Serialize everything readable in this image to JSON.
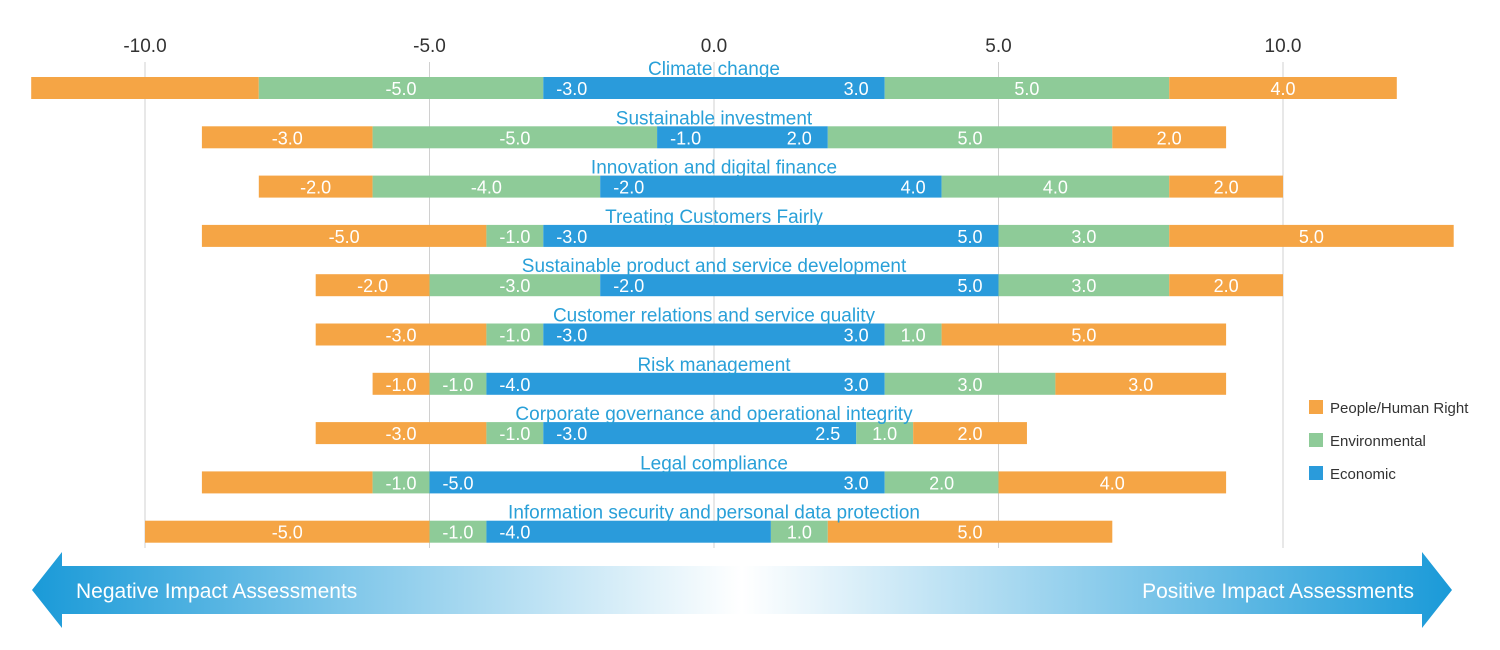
{
  "chart_data": {
    "type": "bar",
    "orientation": "horizontal-diverging-stacked",
    "title": "",
    "xlim": [
      -10.0,
      10.0
    ],
    "x_ticks": [
      "-10.0",
      "-5.0",
      "0.0",
      "5.0",
      "10.0"
    ],
    "x_tick_values": [
      -10,
      -5,
      0,
      5,
      10
    ],
    "grid": true,
    "legend_position": "right",
    "categories": [
      "Climate change",
      "Sustainable investment",
      "Innovation and digital finance",
      "Treating Customers Fairly",
      "Sustainable product and service development",
      "Customer relations and service quality",
      "Risk management",
      "Corporate governance and operational integrity",
      "Legal compliance",
      "Information security and personal data protection"
    ],
    "series": [
      {
        "name": "Economic",
        "color": "#2a9bdb",
        "negative": [
          -3.0,
          -1.0,
          -2.0,
          -3.0,
          -2.0,
          -3.0,
          -4.0,
          -3.0,
          -5.0,
          -4.0
        ],
        "positive": [
          3.0,
          2.0,
          4.0,
          5.0,
          5.0,
          3.0,
          3.0,
          2.5,
          3.0,
          1.0
        ]
      },
      {
        "name": "Environmental",
        "color": "#8ecb98",
        "negative": [
          -5.0,
          -5.0,
          -4.0,
          -1.0,
          -3.0,
          -1.0,
          -1.0,
          -1.0,
          -1.0,
          -1.0
        ],
        "positive": [
          5.0,
          5.0,
          4.0,
          3.0,
          3.0,
          1.0,
          3.0,
          1.0,
          2.0,
          1.0
        ]
      },
      {
        "name": "People/Human Right",
        "color": "#f5a545",
        "negative": [
          -4.0,
          -3.0,
          -2.0,
          -5.0,
          -2.0,
          -3.0,
          -1.0,
          -3.0,
          -3.0,
          -5.0
        ],
        "positive": [
          4.0,
          2.0,
          2.0,
          5.0,
          2.0,
          5.0,
          3.0,
          2.0,
          4.0,
          5.0
        ]
      }
    ],
    "segment_labels": [
      [
        "",
        "-5.0",
        "-3.0",
        "3.0",
        "5.0",
        "4.0"
      ],
      [
        "-3.0",
        "-5.0",
        "-1.0",
        "2.0",
        "5.0",
        "2.0"
      ],
      [
        "-2.0",
        "-4.0",
        "-2.0",
        "4.0",
        "4.0",
        "2.0"
      ],
      [
        "-5.0",
        "-1.0",
        "-3.0",
        "5.0",
        "3.0",
        "5.0"
      ],
      [
        "-2.0",
        "-3.0",
        "-2.0",
        "5.0",
        "3.0",
        "2.0"
      ],
      [
        "-3.0",
        "-1.0",
        "-3.0",
        "3.0",
        "1.0",
        "5.0"
      ],
      [
        "-1.0",
        "-1.0",
        "-4.0",
        "3.0",
        "3.0",
        "3.0"
      ],
      [
        "-3.0",
        "-1.0",
        "-3.0",
        "2.5",
        "1.0",
        "2.0"
      ],
      [
        "",
        "-1.0",
        "-5.0",
        "3.0",
        "2.0",
        "4.0"
      ],
      [
        "-5.0",
        "-1.0",
        "-4.0",
        "",
        "1.0",
        "5.0"
      ]
    ],
    "legend": [
      "People/Human Right",
      "Environmental",
      "Economic"
    ],
    "arrow": {
      "left_label": "Negative Impact Assessments",
      "right_label": "Positive Impact Assessments",
      "color": "#1a9ad8"
    }
  }
}
